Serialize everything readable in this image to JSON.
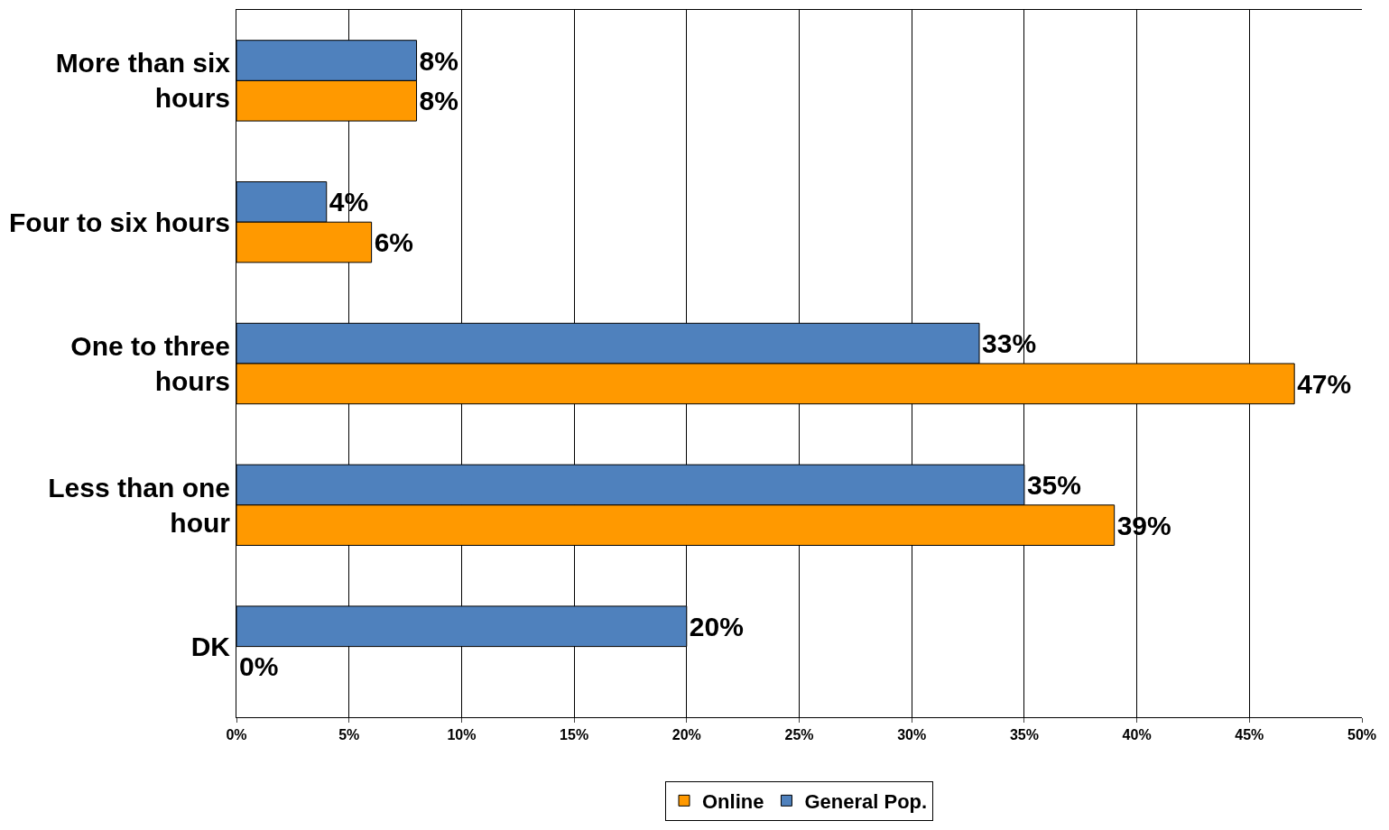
{
  "chart_data": {
    "type": "bar",
    "orientation": "horizontal",
    "categories": [
      "More than six\nhours",
      "Four to six hours",
      "One to three\nhours",
      "Less than one\nhour",
      "DK"
    ],
    "series": [
      {
        "name": "General Pop.",
        "color": "#4f81bd",
        "values": [
          8,
          4,
          33,
          35,
          20
        ],
        "value_labels": [
          "8%",
          "4%",
          "33%",
          "35%",
          "20%"
        ]
      },
      {
        "name": "Online",
        "color": "#ff9900",
        "values": [
          8,
          6,
          47,
          39,
          0
        ],
        "value_labels": [
          "8%",
          "6%",
          "47%",
          "39%",
          "0%"
        ]
      }
    ],
    "xlim": [
      0,
      50
    ],
    "xticks": [
      {
        "value": 0,
        "label": "0%"
      },
      {
        "value": 5,
        "label": "5%"
      },
      {
        "value": 10,
        "label": "10%"
      },
      {
        "value": 15,
        "label": "15%"
      },
      {
        "value": 20,
        "label": "20%"
      },
      {
        "value": 25,
        "label": "25%"
      },
      {
        "value": 30,
        "label": "30%"
      },
      {
        "value": 35,
        "label": "35%"
      },
      {
        "value": 40,
        "label": "40%"
      },
      {
        "value": 45,
        "label": "45%"
      },
      {
        "value": 50,
        "label": "50%"
      }
    ],
    "grid": "x",
    "legend": "bottom"
  }
}
